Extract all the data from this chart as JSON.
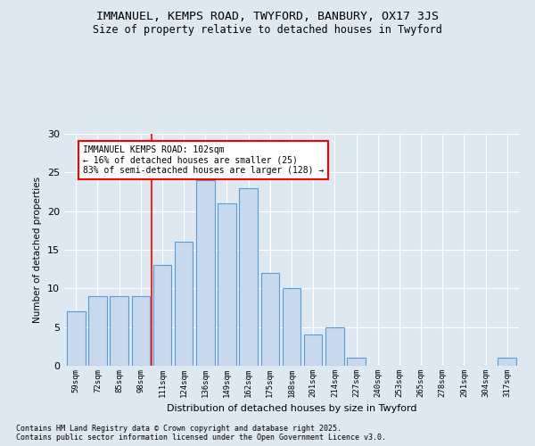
{
  "title1": "IMMANUEL, KEMPS ROAD, TWYFORD, BANBURY, OX17 3JS",
  "title2": "Size of property relative to detached houses in Twyford",
  "xlabel": "Distribution of detached houses by size in Twyford",
  "ylabel": "Number of detached properties",
  "categories": [
    "59sqm",
    "72sqm",
    "85sqm",
    "98sqm",
    "111sqm",
    "124sqm",
    "136sqm",
    "149sqm",
    "162sqm",
    "175sqm",
    "188sqm",
    "201sqm",
    "214sqm",
    "227sqm",
    "240sqm",
    "253sqm",
    "265sqm",
    "278sqm",
    "291sqm",
    "304sqm",
    "317sqm"
  ],
  "values": [
    7,
    9,
    9,
    9,
    13,
    16,
    24,
    21,
    23,
    12,
    10,
    4,
    5,
    1,
    0,
    0,
    0,
    0,
    0,
    0,
    1
  ],
  "bar_color": "#c9d9ed",
  "bar_edge_color": "#5b9bd5",
  "property_line_x": 3.5,
  "annotation_title": "IMMANUEL KEMPS ROAD: 102sqm",
  "annotation_line1": "← 16% of detached houses are smaller (25)",
  "annotation_line2": "83% of semi-detached houses are larger (128) →",
  "ylim": [
    0,
    30
  ],
  "yticks": [
    0,
    5,
    10,
    15,
    20,
    25,
    30
  ],
  "footnote1": "Contains HM Land Registry data © Crown copyright and database right 2025.",
  "footnote2": "Contains public sector information licensed under the Open Government Licence v3.0.",
  "bg_color": "#dde8f0",
  "plot_bg_color": "#dde8f0"
}
